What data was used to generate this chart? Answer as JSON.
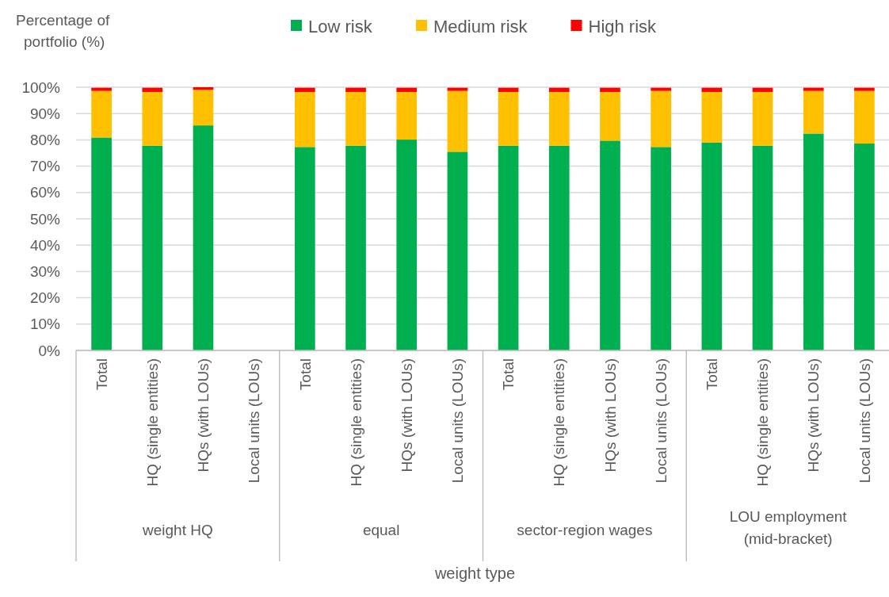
{
  "chart_data": {
    "type": "bar",
    "stacked": true,
    "ylabel": "Percentage of portfolio (%)",
    "xlabel": "weight type",
    "categories": [
      "Total",
      "HQ (single entities)",
      "HQs (with LOUs)",
      "Local units (LOUs)",
      "Total",
      "HQ (single entities)",
      "HQs (with LOUs)",
      "Local units (LOUs)",
      "Total",
      "HQ (single entities)",
      "HQs (with LOUs)",
      "Local units (LOUs)",
      "Total",
      "HQ (single entities)",
      "HQs (with LOUs)",
      "Local units (LOUs)"
    ],
    "series": [
      {
        "name": "Low risk",
        "color": "#00b050",
        "values": [
          80.9,
          77.8,
          85.5,
          null,
          77.3,
          77.8,
          80.1,
          75.5,
          77.8,
          77.8,
          79.7,
          77.3,
          79.0,
          77.8,
          82.4,
          78.6
        ]
      },
      {
        "name": "Medium risk",
        "color": "#ffc000",
        "values": [
          17.7,
          20.4,
          13.5,
          null,
          20.9,
          20.4,
          18.1,
          23.1,
          20.4,
          20.4,
          18.5,
          21.3,
          19.2,
          20.4,
          16.2,
          20.0
        ]
      },
      {
        "name": "High risk",
        "color": "#ff0000",
        "values": [
          1.2,
          1.6,
          1.0,
          null,
          1.6,
          1.6,
          1.6,
          1.2,
          1.6,
          1.6,
          1.6,
          1.2,
          1.6,
          1.6,
          1.2,
          1.2
        ]
      }
    ],
    "ylim": [
      0,
      100
    ],
    "yticks": [
      {
        "value": 0,
        "label": "0%"
      },
      {
        "value": 10,
        "label": "10%"
      },
      {
        "value": 20,
        "label": "20%"
      },
      {
        "value": 30,
        "label": "30%"
      },
      {
        "value": 40,
        "label": "40%"
      },
      {
        "value": 50,
        "label": "50%"
      },
      {
        "value": 60,
        "label": "60%"
      },
      {
        "value": 70,
        "label": "70%"
      },
      {
        "value": 80,
        "label": "80%"
      },
      {
        "value": 90,
        "label": "90%"
      },
      {
        "value": 100,
        "label": "100%"
      }
    ],
    "grid": "y",
    "legend": "top",
    "annotations": [
      "weight HQ",
      "equal",
      "sector-region wages",
      "LOU employment (mid-bracket)"
    ]
  }
}
